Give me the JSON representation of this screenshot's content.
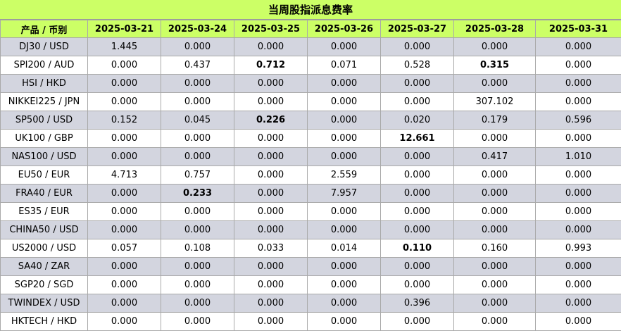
{
  "title": "当周股指派息费率",
  "table": {
    "corner_header": "产品 / 币别",
    "dates": [
      "2025-03-21",
      "2025-03-24",
      "2025-03-25",
      "2025-03-26",
      "2025-03-27",
      "2025-03-28",
      "2025-03-31"
    ],
    "rows": [
      {
        "product": "DJ30 / USD",
        "values": [
          "1.445",
          "0.000",
          "0.000",
          "0.000",
          "0.000",
          "0.000",
          "0.000"
        ],
        "bold": []
      },
      {
        "product": "SPI200 / AUD",
        "values": [
          "0.000",
          "0.437",
          "0.712",
          "0.071",
          "0.528",
          "0.315",
          "0.000"
        ],
        "bold": [
          2,
          5
        ]
      },
      {
        "product": "HSI / HKD",
        "values": [
          "0.000",
          "0.000",
          "0.000",
          "0.000",
          "0.000",
          "0.000",
          "0.000"
        ],
        "bold": []
      },
      {
        "product": "NIKKEI225 / JPN",
        "values": [
          "0.000",
          "0.000",
          "0.000",
          "0.000",
          "0.000",
          "307.102",
          "0.000"
        ],
        "bold": []
      },
      {
        "product": "SP500 / USD",
        "values": [
          "0.152",
          "0.045",
          "0.226",
          "0.000",
          "0.020",
          "0.179",
          "0.596"
        ],
        "bold": [
          2
        ]
      },
      {
        "product": "UK100 / GBP",
        "values": [
          "0.000",
          "0.000",
          "0.000",
          "0.000",
          "12.661",
          "0.000",
          "0.000"
        ],
        "bold": [
          4
        ]
      },
      {
        "product": "NAS100 / USD",
        "values": [
          "0.000",
          "0.000",
          "0.000",
          "0.000",
          "0.000",
          "0.417",
          "1.010"
        ],
        "bold": []
      },
      {
        "product": "EU50 / EUR",
        "values": [
          "4.713",
          "0.757",
          "0.000",
          "2.559",
          "0.000",
          "0.000",
          "0.000"
        ],
        "bold": []
      },
      {
        "product": "FRA40 / EUR",
        "values": [
          "0.000",
          "0.233",
          "0.000",
          "7.957",
          "0.000",
          "0.000",
          "0.000"
        ],
        "bold": [
          1
        ]
      },
      {
        "product": "ES35 / EUR",
        "values": [
          "0.000",
          "0.000",
          "0.000",
          "0.000",
          "0.000",
          "0.000",
          "0.000"
        ],
        "bold": []
      },
      {
        "product": "CHINA50 / USD",
        "values": [
          "0.000",
          "0.000",
          "0.000",
          "0.000",
          "0.000",
          "0.000",
          "0.000"
        ],
        "bold": []
      },
      {
        "product": "US2000 / USD",
        "values": [
          "0.057",
          "0.108",
          "0.033",
          "0.014",
          "0.110",
          "0.160",
          "0.993"
        ],
        "bold": [
          4
        ]
      },
      {
        "product": "SA40 / ZAR",
        "values": [
          "0.000",
          "0.000",
          "0.000",
          "0.000",
          "0.000",
          "0.000",
          "0.000"
        ],
        "bold": []
      },
      {
        "product": "SGP20 / SGD",
        "values": [
          "0.000",
          "0.000",
          "0.000",
          "0.000",
          "0.000",
          "0.000",
          "0.000"
        ],
        "bold": []
      },
      {
        "product": "TWINDEX / USD",
        "values": [
          "0.000",
          "0.000",
          "0.000",
          "0.000",
          "0.396",
          "0.000",
          "0.000"
        ],
        "bold": []
      },
      {
        "product": "HKTECH / HKD",
        "values": [
          "0.000",
          "0.000",
          "0.000",
          "0.000",
          "0.000",
          "0.000",
          "0.000"
        ],
        "bold": []
      }
    ]
  },
  "colors": {
    "header_bg": "#ccff66",
    "stripe_bg": "#d3d5df",
    "row_bg": "#ffffff",
    "border": "#a9a9a9"
  }
}
